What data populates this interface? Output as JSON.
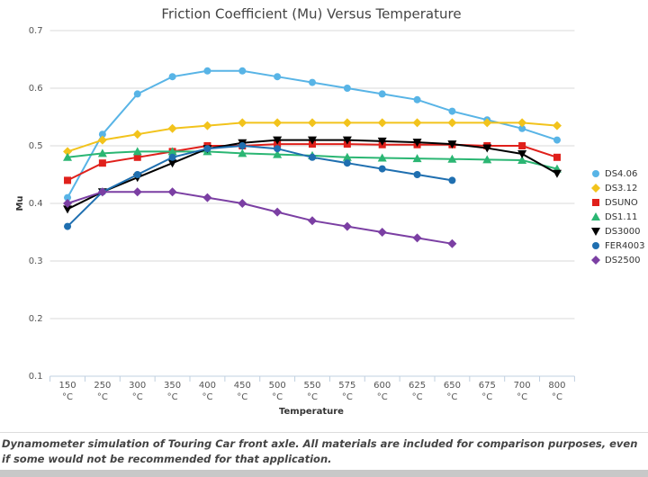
{
  "chart_data": {
    "type": "line",
    "title": "Friction Coefficient (Mu) Versus Temperature",
    "x_label": "Temperature",
    "y_label": "Mu",
    "categories": [
      "150 °C",
      "250 °C",
      "300 °C",
      "350 °C",
      "400 °C",
      "450 °C",
      "500 °C",
      "550 °C",
      "575 °C",
      "600 °C",
      "625 °C",
      "650 °C",
      "675 °C",
      "700 °C",
      "800 °C"
    ],
    "ylim": [
      0.1,
      0.7
    ],
    "yticks": [
      0.1,
      0.2,
      0.3,
      0.4,
      0.5,
      0.6,
      0.7
    ],
    "grid": true,
    "legend": "right",
    "series": [
      {
        "name": "DS4.06",
        "color": "#58b4e6",
        "marker": "circle",
        "values": [
          0.41,
          0.52,
          0.59,
          0.62,
          0.63,
          0.63,
          0.62,
          0.61,
          0.6,
          0.59,
          0.58,
          0.56,
          0.545,
          0.53,
          0.51
        ]
      },
      {
        "name": "DS3.12",
        "color": "#f2c31c",
        "marker": "diamond",
        "values": [
          0.49,
          0.51,
          0.52,
          0.53,
          0.535,
          0.54,
          0.54,
          0.54,
          0.54,
          0.54,
          0.54,
          0.54,
          0.54,
          0.54,
          0.535
        ]
      },
      {
        "name": "DSUNO",
        "color": "#e0201b",
        "marker": "square",
        "values": [
          0.44,
          0.47,
          0.48,
          0.49,
          0.5,
          0.5,
          0.503,
          0.503,
          0.503,
          0.502,
          0.502,
          0.502,
          0.5,
          0.5,
          0.48
        ]
      },
      {
        "name": "DS1.11",
        "color": "#2bb673",
        "marker": "triangle",
        "values": [
          0.48,
          0.487,
          0.49,
          0.49,
          0.49,
          0.487,
          0.485,
          0.483,
          0.48,
          0.479,
          0.478,
          0.477,
          0.476,
          0.475,
          0.46
        ]
      },
      {
        "name": "DS3000",
        "color": "#000000",
        "marker": "triangle-down",
        "values": [
          0.39,
          0.42,
          0.445,
          0.47,
          0.495,
          0.505,
          0.51,
          0.51,
          0.51,
          0.508,
          0.506,
          0.503,
          0.496,
          0.486,
          0.452
        ]
      },
      {
        "name": "FER4003",
        "color": "#1f6fb0",
        "marker": "circle",
        "values": [
          0.36,
          0.42,
          0.45,
          0.48,
          0.495,
          0.5,
          0.495,
          0.48,
          0.47,
          0.46,
          0.45,
          0.44,
          null,
          null,
          null
        ]
      },
      {
        "name": "DS2500",
        "color": "#7b3fa3",
        "marker": "diamond",
        "values": [
          0.4,
          0.42,
          0.42,
          0.42,
          0.41,
          0.4,
          0.385,
          0.37,
          0.36,
          0.35,
          0.34,
          0.33,
          null,
          null,
          null
        ]
      }
    ]
  },
  "caption": "Dynamometer simulation of Touring Car front axle. All materials are included for comparison purposes, even if some would not be recommended for that application."
}
